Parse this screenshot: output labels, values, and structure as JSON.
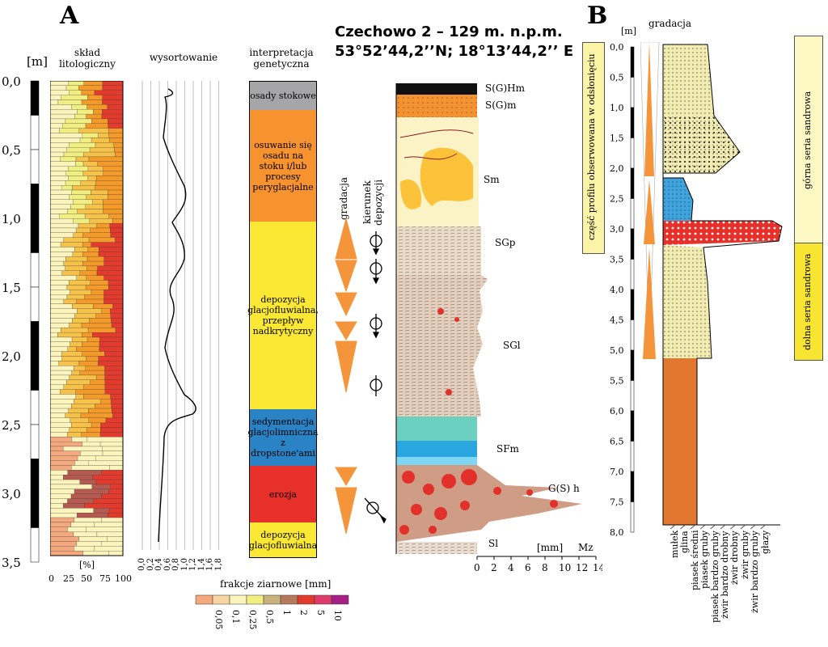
{
  "panelA": {
    "letter": "A",
    "depth_unit": "[m]",
    "depth_ticks": [
      "0,0",
      "0,5",
      "1,0",
      "1,5",
      "2,0",
      "2,5",
      "3,0",
      "3,5"
    ],
    "lith_header": "skład litologiczny",
    "lith_xlabel": "[%]",
    "lith_xticks": [
      "0",
      "25",
      "50",
      "75",
      "100"
    ],
    "sort_header": "wysortowanie",
    "sort_xticks": [
      "0,0",
      "0,2",
      "0,4",
      "0,6",
      "0,8",
      "1,0",
      "1,2",
      "1,4",
      "1,6",
      "1,8"
    ],
    "interp_header": "interpretacja genetyczna",
    "interpretation": [
      {
        "label": "osady stokowe",
        "color": "#a6a6a8"
      },
      {
        "label": "osuwanie się osadu na stoku i/lub procesy peryglacjalne",
        "color": "#f7932f"
      },
      {
        "label": "depozycja glacjofluwialna, przepływ nadkrytyczny",
        "color": "#fbe834"
      },
      {
        "label": "sedymentacja glacjolimniczna z dropstone'ami",
        "color": "#2a83c5"
      },
      {
        "label": "erozja",
        "color": "#e8302b"
      },
      {
        "label": "depozycja glacjofluwialna",
        "color": "#fbe834"
      }
    ],
    "gradation_label": "gradacja",
    "direction_label": "kierunek depozycji",
    "site_title_line1": "Czechowo 2 – 129 m. n.p.m.",
    "site_title_line2": "53°52’44,2’’N; 18°13’44,2’’ E",
    "facies": [
      "S(G)Hm",
      "S(G)m",
      "Sm",
      "SGp",
      "SGl",
      "SFm",
      "G(S) h",
      "Sl"
    ],
    "profile_xlabel": "[mm]",
    "profile_mz": "Mz",
    "profile_xticks": [
      "0",
      "2",
      "4",
      "6",
      "8",
      "10",
      "12",
      "14"
    ],
    "legend_title": "frakcje ziarnowe [mm]",
    "legend_labels": [
      "0,05",
      "0,1",
      "0,25",
      "0,5",
      "1",
      "2",
      "5",
      "10"
    ],
    "legend_colors": [
      "#f4a87e",
      "#f8d6a4",
      "#fbf4bd",
      "#f2ef82",
      "#c6b27a",
      "#b57a5c",
      "#e33a2e",
      "#de3a6a",
      "#a51f86"
    ]
  },
  "panelB": {
    "letter": "B",
    "depth_unit": "[m]",
    "gradation_label": "gradacja",
    "depth_ticks": [
      "0,0",
      "0,5",
      "1,0",
      "1,5",
      "2,0",
      "2,5",
      "3,0",
      "3,5",
      "4,0",
      "4,5",
      "5,0",
      "5,5",
      "6,0",
      "6,5",
      "7,0",
      "7,5",
      "8,0"
    ],
    "observed_label": "część profilu obserwowana w odsłonięciu",
    "upper_series": "górna seria sandrowa",
    "lower_series": "dolna seria sandrowa",
    "grain_labels": [
      "mułek",
      "glina",
      "piasek średni",
      "piasek gruby",
      "piasek bardzo gruby",
      "żwir bardzo drobny",
      "żwir drobny",
      "żwir gruby",
      "żwir bardzo gruby",
      "głazy"
    ]
  }
}
